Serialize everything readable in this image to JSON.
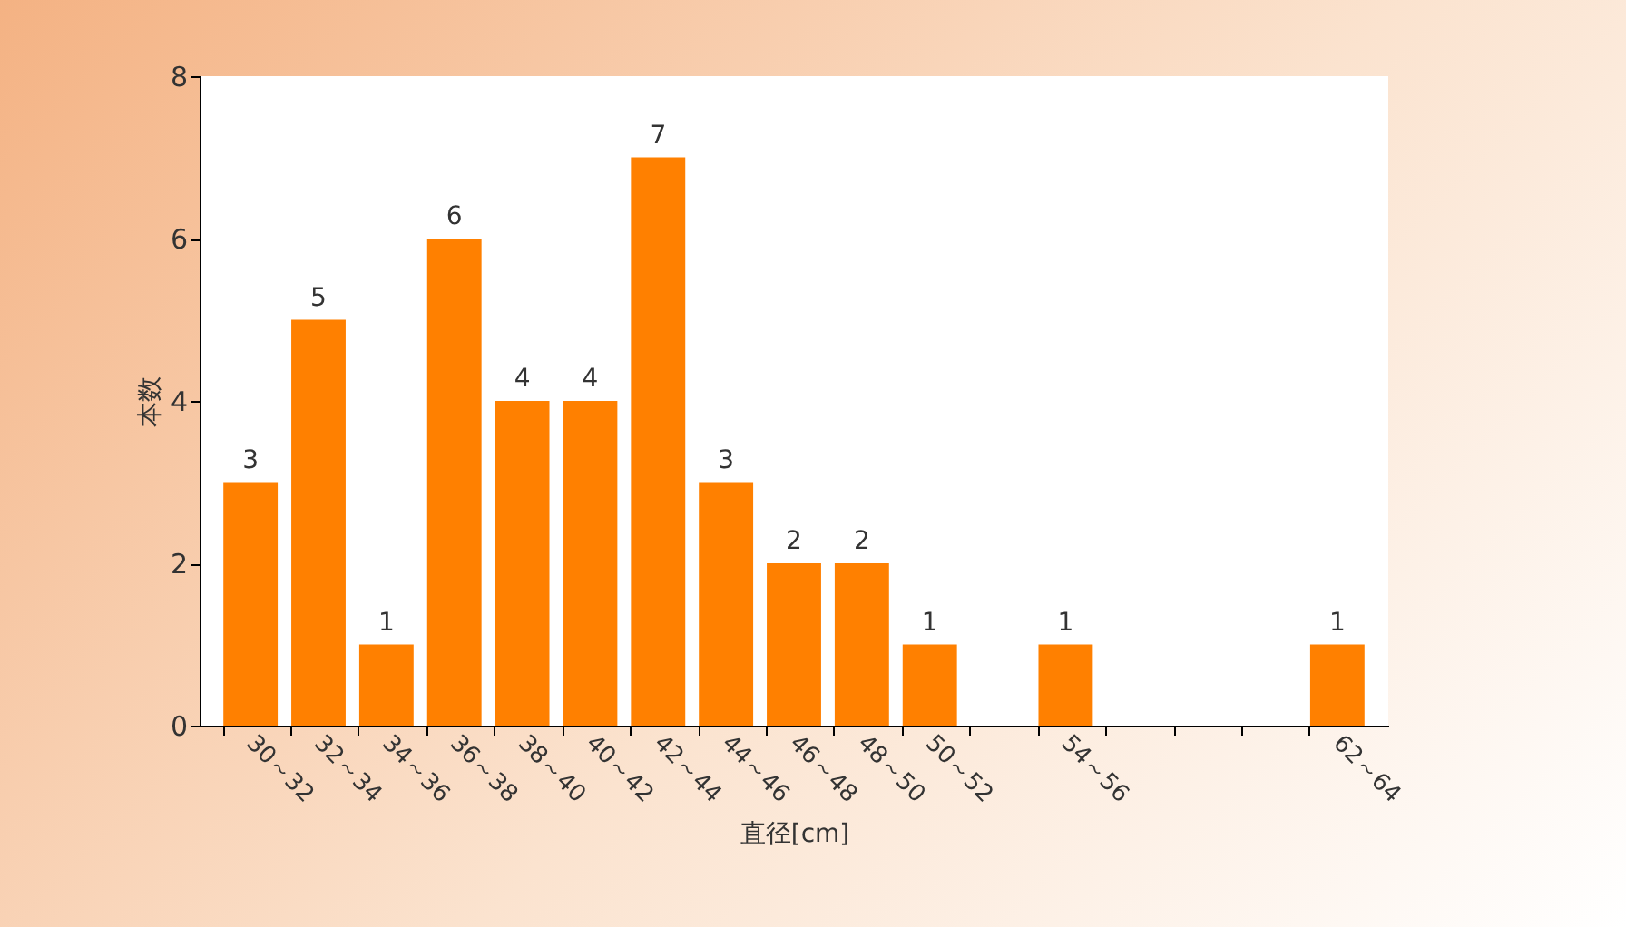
{
  "chart_data": {
    "type": "bar",
    "xlabel": "直径[cm]",
    "ylabel": "本数",
    "categories": [
      "30～32",
      "32～34",
      "34～36",
      "36～38",
      "38～40",
      "40～42",
      "42～44",
      "44～46",
      "46～48",
      "48～50",
      "50～52",
      null,
      "54～56",
      null,
      null,
      null,
      "62～64"
    ],
    "values": [
      3,
      5,
      1,
      6,
      4,
      4,
      7,
      3,
      2,
      2,
      1,
      null,
      1,
      null,
      null,
      null,
      1
    ],
    "color": "#ff8000",
    "ylim": [
      0,
      8
    ],
    "yticks": [
      0,
      2,
      4,
      6,
      8
    ],
    "grid": false,
    "data_labels": true
  }
}
